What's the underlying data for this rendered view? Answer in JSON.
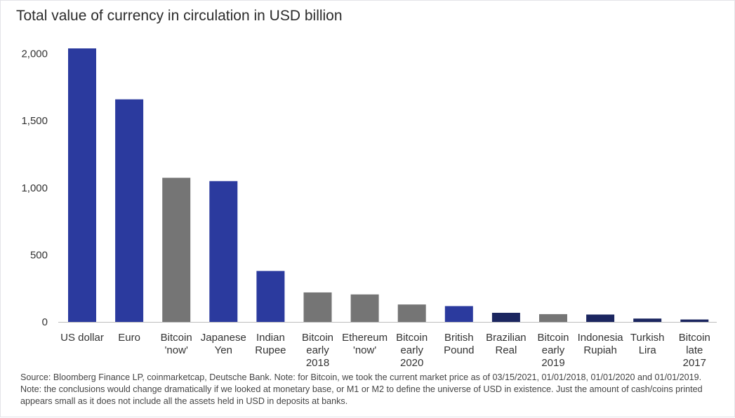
{
  "colors": {
    "dollar_blue": "#2b3a9e",
    "bitcoin_gray": "#757575",
    "navy": "#1b2660",
    "axis": "#bdbdbd"
  },
  "chart_data": {
    "type": "bar",
    "title": "Total value of currency in circulation in USD billion",
    "xlabel": "",
    "ylabel": "",
    "ylim": [
      0,
      2000
    ],
    "yticks": [
      0,
      500,
      1000,
      1500,
      2000
    ],
    "ytick_labels": [
      "0",
      "500",
      "1,000",
      "1,500",
      "2,000"
    ],
    "grid": false,
    "legend": "none",
    "categories": [
      [
        "US dollar"
      ],
      [
        "Euro"
      ],
      [
        "Bitcoin",
        "'now'"
      ],
      [
        "Japanese",
        "Yen"
      ],
      [
        "Indian",
        "Rupee"
      ],
      [
        "Bitcoin",
        "early",
        "2018"
      ],
      [
        "Ethereum",
        "'now'"
      ],
      [
        "Bitcoin",
        "early",
        "2020"
      ],
      [
        "British",
        "Pound"
      ],
      [
        "Brazilian",
        "Real"
      ],
      [
        "Bitcoin",
        "early",
        "2019"
      ],
      [
        "Indonesia",
        "Rupiah"
      ],
      [
        "Turkish",
        "Lira"
      ],
      [
        "Bitcoin",
        "late",
        "2017"
      ]
    ],
    "values": [
      2040,
      1660,
      1075,
      1050,
      380,
      220,
      205,
      130,
      118,
      68,
      58,
      55,
      25,
      18
    ],
    "bar_colors": [
      "#2b3a9e",
      "#2b3a9e",
      "#757575",
      "#2b3a9e",
      "#2b3a9e",
      "#757575",
      "#757575",
      "#757575",
      "#2b3a9e",
      "#1b2660",
      "#757575",
      "#1b2660",
      "#1b2660",
      "#1b2660"
    ]
  },
  "source_note": "Source: Bloomberg Finance LP, coinmarketcap, Deutsche Bank. Note: for Bitcoin, we took the current market price as of 03/15/2021, 01/01/2018, 01/01/2020 and 01/01/2019. Note: the conclusions would change dramatically if we looked at monetary base, or M1 or M2 to define the universe of USD in existence. Just the amount of cash/coins printed appears small as it does not include all the assets held in USD in deposits at banks."
}
